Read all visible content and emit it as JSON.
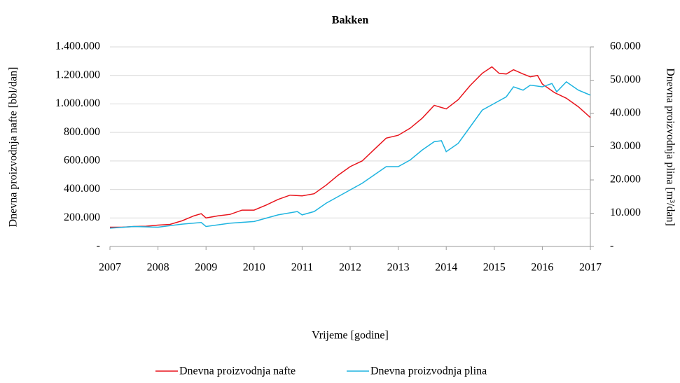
{
  "chart_data": {
    "type": "line",
    "title": "Bakken",
    "xlabel": "Vrijeme [godine]",
    "ylabel": "Dnevna proizvodnja nafte [bbl/dan]",
    "y2label": "Dnevna proizvodnja plina [m³/dan]",
    "xlim": [
      2007,
      2017
    ],
    "xticks": [
      2007,
      2008,
      2009,
      2010,
      2011,
      2012,
      2013,
      2014,
      2015,
      2016,
      2017
    ],
    "ylim": [
      0,
      1400000
    ],
    "yticks": [
      {
        "value": 0,
        "label": "-"
      },
      {
        "value": 200000,
        "label": "200.000"
      },
      {
        "value": 400000,
        "label": "400.000"
      },
      {
        "value": 600000,
        "label": "600.000"
      },
      {
        "value": 800000,
        "label": "800.000"
      },
      {
        "value": 1000000,
        "label": "1.000.000"
      },
      {
        "value": 1200000,
        "label": "1.200.000"
      },
      {
        "value": 1400000,
        "label": "1.400.000"
      }
    ],
    "y2lim": [
      0,
      60000
    ],
    "y2ticks": [
      {
        "value": 0,
        "label": "-"
      },
      {
        "value": 10000,
        "label": "10.000"
      },
      {
        "value": 20000,
        "label": "20.000"
      },
      {
        "value": 30000,
        "label": "30.000"
      },
      {
        "value": 40000,
        "label": "40.000"
      },
      {
        "value": 50000,
        "label": "50.000"
      },
      {
        "value": 60000,
        "label": "60.000"
      }
    ],
    "legend": "bottom",
    "series": [
      {
        "name": "Dnevna proizvodnja nafte",
        "color": "#e8141c",
        "x": [
          2007,
          2007.25,
          2007.5,
          2007.75,
          2008,
          2008.25,
          2008.5,
          2008.75,
          2008.9,
          2009,
          2009.25,
          2009.5,
          2009.75,
          2010,
          2010.25,
          2010.5,
          2010.75,
          2011,
          2011.25,
          2011.5,
          2011.75,
          2012,
          2012.25,
          2012.5,
          2012.75,
          2013,
          2013.25,
          2013.5,
          2013.75,
          2014,
          2014.25,
          2014.5,
          2014.75,
          2014.95,
          2015.1,
          2015.25,
          2015.4,
          2015.6,
          2015.75,
          2015.9,
          2016,
          2016.25,
          2016.5,
          2016.75,
          2017
        ],
        "values": [
          135000,
          135000,
          140000,
          142000,
          150000,
          155000,
          180000,
          215000,
          230000,
          200000,
          215000,
          225000,
          255000,
          255000,
          290000,
          330000,
          360000,
          355000,
          370000,
          430000,
          500000,
          560000,
          600000,
          680000,
          760000,
          780000,
          830000,
          900000,
          990000,
          965000,
          1030000,
          1130000,
          1215000,
          1260000,
          1215000,
          1210000,
          1240000,
          1210000,
          1190000,
          1200000,
          1140000,
          1080000,
          1040000,
          980000,
          905000
        ]
      },
      {
        "name": "Dnevna proizvodnja plina",
        "color": "#1eb4e0",
        "axis": "y2",
        "x": [
          2007,
          2007.5,
          2008,
          2008.5,
          2008.9,
          2009,
          2009.5,
          2010,
          2010.5,
          2010.9,
          2011,
          2011.25,
          2011.5,
          2011.75,
          2012,
          2012.25,
          2012.5,
          2012.75,
          2013,
          2013.25,
          2013.5,
          2013.75,
          2013.9,
          2014,
          2014.25,
          2014.5,
          2014.75,
          2015,
          2015.25,
          2015.4,
          2015.6,
          2015.75,
          2016,
          2016.2,
          2016.3,
          2016.5,
          2016.75,
          2017
        ],
        "values": [
          5500,
          6000,
          5800,
          6700,
          7200,
          6000,
          7000,
          7500,
          9500,
          10500,
          9500,
          10500,
          13000,
          15000,
          17000,
          19000,
          21500,
          24000,
          24000,
          26000,
          29000,
          31500,
          31800,
          28500,
          31000,
          36000,
          41000,
          43000,
          45000,
          48000,
          47000,
          48500,
          48000,
          49000,
          46500,
          49500,
          47000,
          45500
        ]
      }
    ]
  }
}
